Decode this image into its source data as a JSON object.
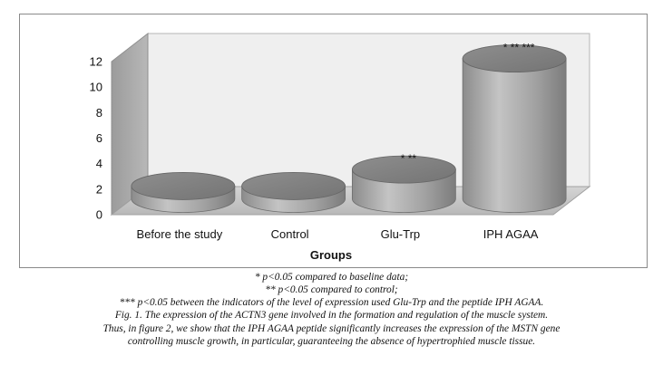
{
  "chart_data": {
    "type": "bar",
    "title": "",
    "xlabel": "Groups",
    "ylabel": "",
    "categories": [
      "Before the study",
      "Control",
      "Glu-Trp",
      "IPH AGAA"
    ],
    "values": [
      1.0,
      1.0,
      2.3,
      11.0
    ],
    "annotations": [
      "",
      "",
      "* **",
      "* ** ***"
    ],
    "ylim": [
      0,
      12
    ],
    "yticks": [
      "0",
      "2",
      "4",
      "6",
      "8",
      "10",
      "12"
    ],
    "grid": false,
    "style": "3d-cylinder",
    "colors": {
      "bar": "#9c9c9c",
      "bar_top": "#7f7f7f",
      "floor": "#c8c8c8",
      "back_wall": "#efefef",
      "side_wall": "#a9a9a9"
    }
  },
  "caption": {
    "line1": "* p<0.05 compared to baseline data;",
    "line2": "** p<0.05 compared to control;",
    "line3": "*** p<0.05 between the indicators of the level of expression used Glu-Trp and the peptide IPH AGAA.",
    "line4": "Fig. 1. The expression of the ACTN3 gene involved in the formation and regulation of the muscle system.",
    "line5": "Thus, in figure 2, we show that the IPH AGAA peptide significantly increases the expression of the MSTN gene",
    "line6": "controlling muscle growth, in particular, guaranteeing the absence of hypertrophied muscle tissue."
  }
}
